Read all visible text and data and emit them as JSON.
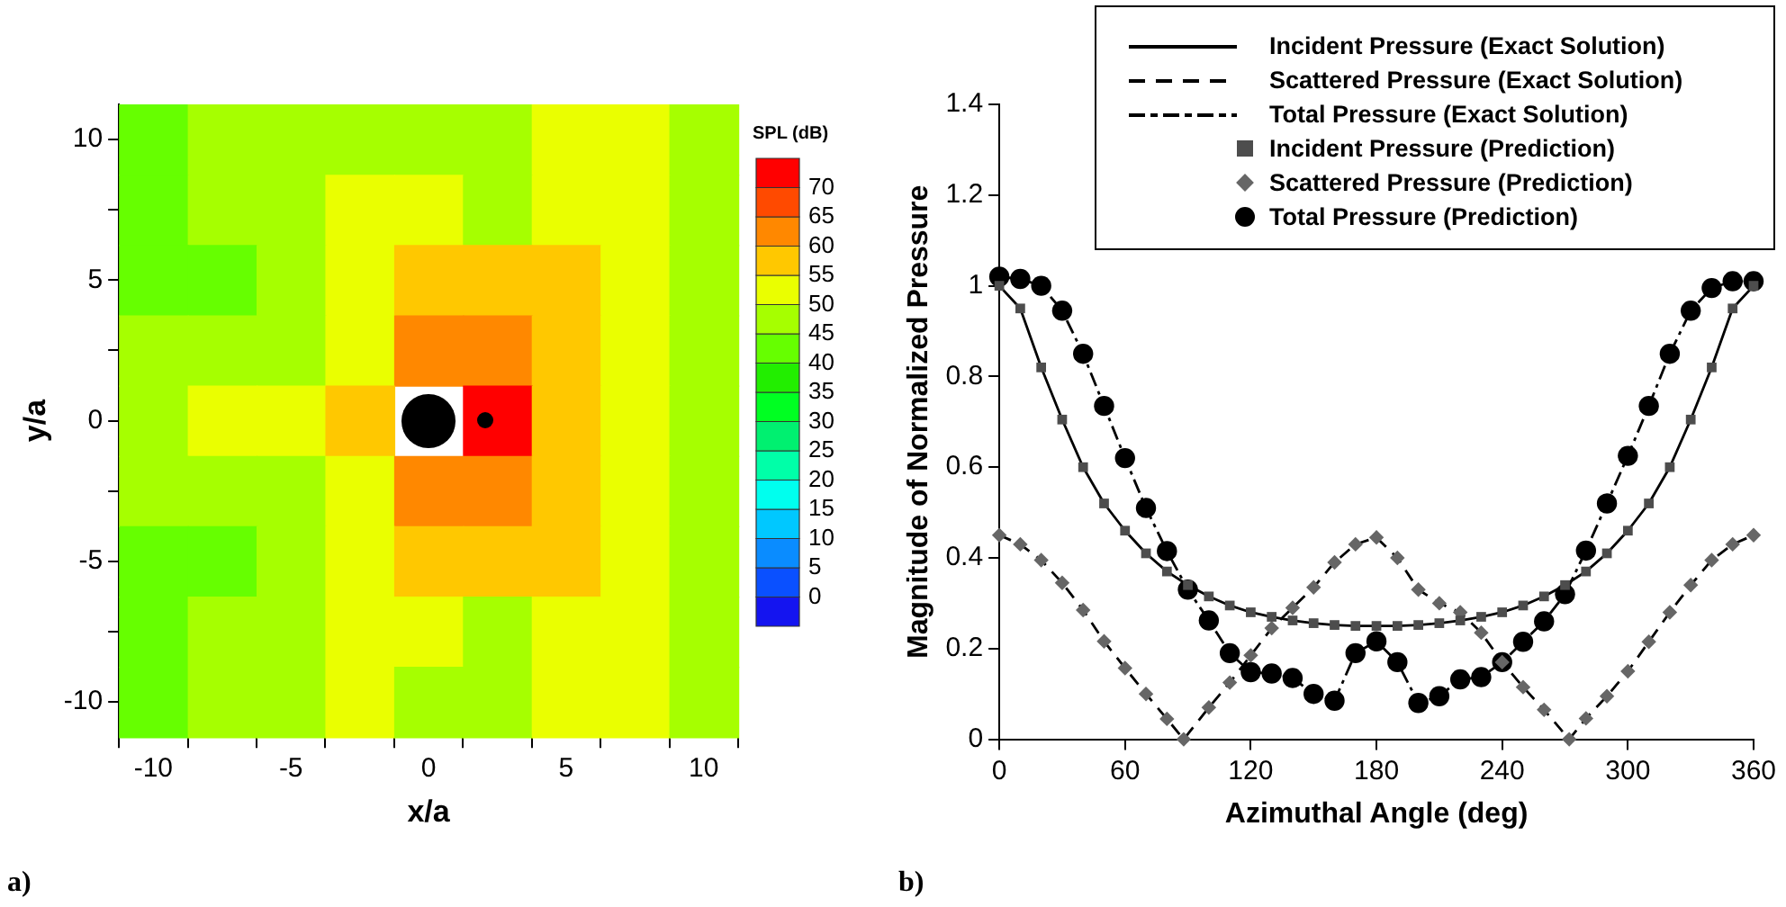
{
  "chart_data": [
    {
      "type": "heatmap",
      "xlabel": "x/a",
      "ylabel": "y/a",
      "clabel": "SPL (dB)",
      "categories": [
        "-10",
        null,
        "-5",
        null,
        "0",
        null,
        "5",
        null,
        "10"
      ],
      "y_categories": [
        "10",
        null,
        "5",
        null,
        "0",
        null,
        "-5",
        null,
        "-10"
      ],
      "cells": [
        [
          42.5,
          47.5,
          47.5,
          47.5,
          47.5,
          47.5,
          52.5,
          52.5,
          47.5
        ],
        [
          42.5,
          47.5,
          47.5,
          52.5,
          52.5,
          47.5,
          52.5,
          52.5,
          47.5
        ],
        [
          42.5,
          42.5,
          47.5,
          52.5,
          57.5,
          57.5,
          57.5,
          52.5,
          47.5
        ],
        [
          47.5,
          47.5,
          47.5,
          52.5,
          62.5,
          62.5,
          57.5,
          52.5,
          47.5
        ],
        [
          47.5,
          52.5,
          52.5,
          57.5,
          null,
          72.5,
          57.5,
          52.5,
          47.5
        ],
        [
          47.5,
          47.5,
          47.5,
          52.5,
          62.5,
          62.5,
          57.5,
          52.5,
          47.5
        ],
        [
          42.5,
          42.5,
          47.5,
          52.5,
          57.5,
          57.5,
          57.5,
          52.5,
          47.5
        ],
        [
          42.5,
          47.5,
          47.5,
          52.5,
          52.5,
          47.5,
          52.5,
          52.5,
          47.5
        ],
        [
          42.5,
          47.5,
          47.5,
          52.5,
          47.5,
          47.5,
          52.5,
          52.5,
          47.5
        ]
      ],
      "clim": [
        -5,
        75
      ],
      "cticks": [
        0,
        5,
        10,
        15,
        20,
        25,
        30,
        35,
        40,
        45,
        50,
        55,
        60,
        65,
        70
      ],
      "annotations": [
        "a)"
      ]
    },
    {
      "type": "line",
      "xlabel": "Azimuthal Angle (deg)",
      "ylabel": "Magnitude of Normalized Pressure",
      "xlim": [
        0,
        360
      ],
      "xticks": [
        0,
        60,
        120,
        180,
        240,
        300,
        360
      ],
      "ylim": [
        0,
        1.4
      ],
      "yticks": [
        0,
        0.2,
        0.4,
        0.6,
        0.8,
        1,
        1.2,
        1.4
      ],
      "grid": false,
      "legend": "top right",
      "series": [
        {
          "name": "Incident Pressure (Exact Solution)",
          "type": "line",
          "line_style": "solid",
          "color": "#000000",
          "x": [
            0,
            10,
            20,
            30,
            40,
            50,
            60,
            70,
            80,
            90,
            100,
            110,
            120,
            130,
            140,
            150,
            160,
            170,
            180,
            190,
            200,
            210,
            220,
            230,
            240,
            250,
            260,
            270,
            280,
            290,
            300,
            310,
            320,
            330,
            340,
            350,
            360
          ],
          "values": [
            1.0,
            0.95,
            0.82,
            0.705,
            0.6,
            0.52,
            0.46,
            0.41,
            0.37,
            0.34,
            0.315,
            0.295,
            0.28,
            0.27,
            0.262,
            0.256,
            0.252,
            0.25,
            0.25,
            0.25,
            0.252,
            0.256,
            0.262,
            0.27,
            0.28,
            0.295,
            0.315,
            0.34,
            0.37,
            0.41,
            0.46,
            0.52,
            0.6,
            0.705,
            0.82,
            0.95,
            1.0
          ]
        },
        {
          "name": "Scattered Pressure (Exact Solution)",
          "type": "line",
          "line_style": "dashed",
          "color": "#000000",
          "x": [
            0,
            10,
            20,
            30,
            40,
            50,
            60,
            70,
            80,
            88,
            100,
            110,
            120,
            130,
            140,
            150,
            160,
            170,
            180,
            190,
            200,
            210,
            220,
            230,
            240,
            250,
            260,
            272,
            280,
            290,
            300,
            310,
            320,
            330,
            340,
            350,
            360
          ],
          "values": [
            0.45,
            0.43,
            0.395,
            0.345,
            0.285,
            0.216,
            0.157,
            0.1,
            0.045,
            0.0,
            0.07,
            0.125,
            0.185,
            0.245,
            0.29,
            0.335,
            0.39,
            0.43,
            0.445,
            0.4,
            0.33,
            0.3,
            0.28,
            0.235,
            0.17,
            0.115,
            0.065,
            0.0,
            0.046,
            0.095,
            0.15,
            0.215,
            0.28,
            0.34,
            0.395,
            0.43,
            0.45
          ]
        },
        {
          "name": "Total Pressure (Exact Solution)",
          "type": "line",
          "line_style": "dashdot",
          "color": "#000000",
          "x": [
            0,
            10,
            20,
            30,
            40,
            50,
            60,
            70,
            80,
            90,
            100,
            110,
            120,
            130,
            140,
            150,
            160,
            170,
            180,
            190,
            200,
            210,
            220,
            230,
            240,
            250,
            260,
            270,
            280,
            290,
            300,
            310,
            320,
            330,
            340,
            350,
            360
          ],
          "values": [
            1.02,
            1.015,
            1.0,
            0.945,
            0.85,
            0.735,
            0.62,
            0.51,
            0.415,
            0.33,
            0.262,
            0.19,
            0.148,
            0.145,
            0.135,
            0.1,
            0.085,
            0.19,
            0.216,
            0.17,
            0.08,
            0.095,
            0.132,
            0.137,
            0.17,
            0.215,
            0.26,
            0.32,
            0.416,
            0.52,
            0.625,
            0.735,
            0.85,
            0.945,
            0.995,
            1.01,
            1.01
          ]
        },
        {
          "name": "Incident Pressure (Prediction)",
          "type": "scatter",
          "marker": "square",
          "color": "#4d4d4d",
          "x": [
            0,
            10,
            20,
            30,
            40,
            50,
            60,
            70,
            80,
            90,
            100,
            110,
            120,
            130,
            140,
            150,
            160,
            170,
            180,
            190,
            200,
            210,
            220,
            230,
            240,
            250,
            260,
            270,
            280,
            290,
            300,
            310,
            320,
            330,
            340,
            350,
            360
          ],
          "values": [
            1.0,
            0.95,
            0.82,
            0.705,
            0.6,
            0.52,
            0.46,
            0.41,
            0.37,
            0.34,
            0.315,
            0.295,
            0.28,
            0.27,
            0.262,
            0.256,
            0.252,
            0.25,
            0.25,
            0.25,
            0.252,
            0.256,
            0.262,
            0.27,
            0.28,
            0.295,
            0.315,
            0.34,
            0.37,
            0.41,
            0.46,
            0.52,
            0.6,
            0.705,
            0.82,
            0.95,
            1.0
          ]
        },
        {
          "name": "Scattered Pressure (Prediction)",
          "type": "scatter",
          "marker": "diamond",
          "color": "#666666",
          "x": [
            0,
            10,
            20,
            30,
            40,
            50,
            60,
            70,
            80,
            88,
            100,
            110,
            120,
            130,
            140,
            150,
            160,
            170,
            180,
            190,
            200,
            210,
            220,
            230,
            240,
            250,
            260,
            272,
            280,
            290,
            300,
            310,
            320,
            330,
            340,
            350,
            360
          ],
          "values": [
            0.45,
            0.43,
            0.395,
            0.345,
            0.285,
            0.216,
            0.157,
            0.1,
            0.045,
            0.0,
            0.07,
            0.125,
            0.185,
            0.245,
            0.29,
            0.335,
            0.39,
            0.43,
            0.445,
            0.4,
            0.33,
            0.3,
            0.28,
            0.235,
            0.17,
            0.115,
            0.065,
            0.0,
            0.046,
            0.095,
            0.15,
            0.215,
            0.28,
            0.34,
            0.395,
            0.43,
            0.45
          ]
        },
        {
          "name": "Total Pressure (Prediction)",
          "type": "scatter",
          "marker": "circle",
          "color": "#000000",
          "x": [
            0,
            10,
            20,
            30,
            40,
            50,
            60,
            70,
            80,
            90,
            100,
            110,
            120,
            130,
            140,
            150,
            160,
            170,
            180,
            190,
            200,
            210,
            220,
            230,
            240,
            250,
            260,
            270,
            280,
            290,
            300,
            310,
            320,
            330,
            340,
            350,
            360
          ],
          "values": [
            1.02,
            1.015,
            1.0,
            0.945,
            0.85,
            0.735,
            0.62,
            0.51,
            0.415,
            0.33,
            0.262,
            0.19,
            0.148,
            0.145,
            0.135,
            0.1,
            0.085,
            0.19,
            0.216,
            0.17,
            0.08,
            0.095,
            0.132,
            0.137,
            0.17,
            0.215,
            0.26,
            0.32,
            0.416,
            0.52,
            0.625,
            0.735,
            0.85,
            0.945,
            0.995,
            1.01,
            1.01
          ]
        }
      ],
      "annotations": [
        "b)"
      ]
    }
  ]
}
